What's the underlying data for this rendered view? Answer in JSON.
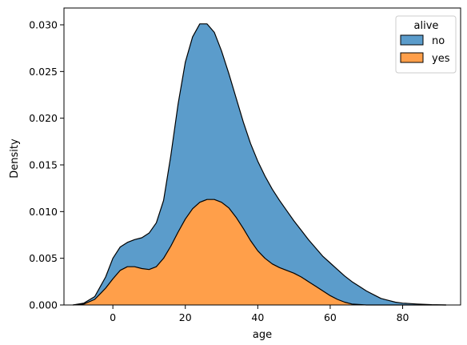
{
  "chart_data": {
    "type": "area",
    "stacking": "multiple-stack",
    "xlabel": "age",
    "ylabel": "Density",
    "xlim": [
      -13.5,
      96
    ],
    "ylim": [
      0,
      0.0318
    ],
    "x_ticks": [
      0,
      20,
      40,
      60,
      80
    ],
    "y_ticks": [
      0.0,
      0.005,
      0.01,
      0.015,
      0.02,
      0.025,
      0.03
    ],
    "y_tick_labels": [
      "0.000",
      "0.005",
      "0.010",
      "0.015",
      "0.020",
      "0.025",
      "0.030"
    ],
    "grid": false,
    "legend": {
      "title": "alive",
      "placement": "top-right",
      "entries": [
        "no",
        "yes"
      ]
    },
    "series": [
      {
        "name": "yes",
        "color": "#ff9f4a",
        "points": [
          [
            -11,
            0.0
          ],
          [
            -8,
            0.0001
          ],
          [
            -5,
            0.0006
          ],
          [
            -2,
            0.0018
          ],
          [
            0,
            0.0028
          ],
          [
            2,
            0.0037
          ],
          [
            4,
            0.0041
          ],
          [
            6,
            0.0041
          ],
          [
            8,
            0.0039
          ],
          [
            10,
            0.0038
          ],
          [
            12,
            0.0041
          ],
          [
            14,
            0.005
          ],
          [
            16,
            0.0063
          ],
          [
            18,
            0.0078
          ],
          [
            20,
            0.0092
          ],
          [
            22,
            0.0103
          ],
          [
            24,
            0.011
          ],
          [
            26,
            0.0113
          ],
          [
            28,
            0.0113
          ],
          [
            30,
            0.011
          ],
          [
            32,
            0.0104
          ],
          [
            34,
            0.0094
          ],
          [
            36,
            0.0082
          ],
          [
            38,
            0.0069
          ],
          [
            40,
            0.0058
          ],
          [
            42,
            0.005
          ],
          [
            44,
            0.0044
          ],
          [
            46,
            0.004
          ],
          [
            48,
            0.0037
          ],
          [
            50,
            0.0034
          ],
          [
            52,
            0.003
          ],
          [
            54,
            0.0025
          ],
          [
            56,
            0.002
          ],
          [
            58,
            0.0015
          ],
          [
            60,
            0.001
          ],
          [
            62,
            0.0006
          ],
          [
            64,
            0.0003
          ],
          [
            66,
            0.0001
          ],
          [
            70,
            0.0
          ],
          [
            92,
            0.0
          ]
        ]
      },
      {
        "name": "no",
        "color": "#5b9ccb",
        "points": [
          [
            -11,
            0.0
          ],
          [
            -8,
            0.0002
          ],
          [
            -5,
            0.0009
          ],
          [
            -2,
            0.003
          ],
          [
            0,
            0.005
          ],
          [
            2,
            0.0062
          ],
          [
            4,
            0.0067
          ],
          [
            6,
            0.007
          ],
          [
            8,
            0.0072
          ],
          [
            10,
            0.0077
          ],
          [
            12,
            0.0088
          ],
          [
            14,
            0.0112
          ],
          [
            16,
            0.016
          ],
          [
            18,
            0.0215
          ],
          [
            20,
            0.026
          ],
          [
            22,
            0.0287
          ],
          [
            24,
            0.0301
          ],
          [
            26,
            0.0301
          ],
          [
            28,
            0.0292
          ],
          [
            30,
            0.0272
          ],
          [
            32,
            0.0248
          ],
          [
            34,
            0.0222
          ],
          [
            36,
            0.0196
          ],
          [
            38,
            0.0173
          ],
          [
            40,
            0.0154
          ],
          [
            42,
            0.0138
          ],
          [
            44,
            0.0124
          ],
          [
            46,
            0.0112
          ],
          [
            48,
            0.0101
          ],
          [
            50,
            0.009
          ],
          [
            52,
            0.008
          ],
          [
            54,
            0.007
          ],
          [
            56,
            0.0061
          ],
          [
            58,
            0.0052
          ],
          [
            60,
            0.0045
          ],
          [
            62,
            0.0038
          ],
          [
            64,
            0.0031
          ],
          [
            66,
            0.0025
          ],
          [
            68,
            0.002
          ],
          [
            70,
            0.0015
          ],
          [
            72,
            0.0011
          ],
          [
            74,
            0.0007
          ],
          [
            76,
            0.0005
          ],
          [
            78,
            0.0003
          ],
          [
            80,
            0.0002
          ],
          [
            84,
            0.0001
          ],
          [
            88,
            3e-05
          ],
          [
            92,
            0.0
          ]
        ]
      }
    ]
  }
}
